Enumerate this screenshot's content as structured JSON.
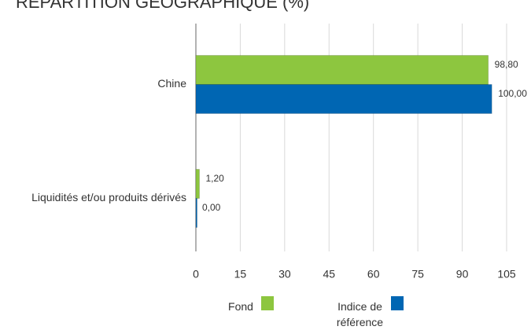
{
  "chart_data": {
    "type": "bar",
    "orientation": "horizontal",
    "title": "RÉPARTITION GÉOGRAPHIQUE (%)",
    "categories": [
      "Chine",
      "Liquidités et/ou produits dérivés"
    ],
    "series": [
      {
        "name": "Fond",
        "color": "#8dc63f",
        "values": [
          98.8,
          1.2
        ],
        "value_labels": [
          "98,80",
          "1,20"
        ]
      },
      {
        "name": "Indice de référence",
        "color": "#0066b3",
        "values": [
          100,
          0
        ],
        "value_labels": [
          "100,00",
          "0,00"
        ]
      }
    ],
    "xlim": [
      0,
      105
    ],
    "xticks": [
      0,
      15,
      30,
      45,
      60,
      75,
      90,
      105
    ],
    "grid": true
  }
}
